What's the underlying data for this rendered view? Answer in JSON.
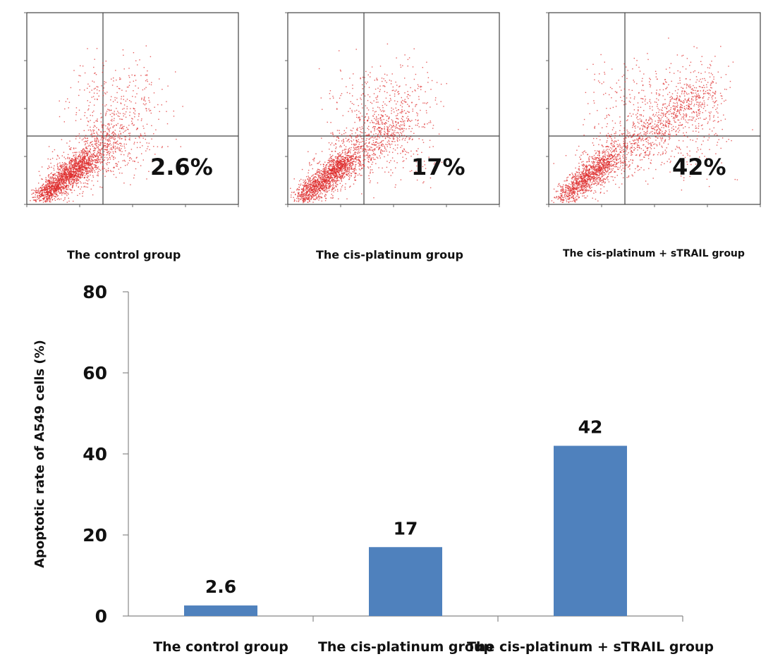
{
  "chart_data": [
    {
      "type": "scatter",
      "panel": "flow cytometry dot plot",
      "label": "The control group",
      "annotation": "2.6%",
      "apoptotic_rate": 2.6,
      "color": "#dd2a2a"
    },
    {
      "type": "scatter",
      "panel": "flow cytometry dot plot",
      "label": "The cis-platinum group",
      "annotation": "17%",
      "apoptotic_rate": 17,
      "color": "#dd2a2a"
    },
    {
      "type": "scatter",
      "panel": "flow cytometry dot plot",
      "label": "The cis-platinum + sTRAIL group",
      "annotation": "42%",
      "apoptotic_rate": 42,
      "color": "#dd2a2a"
    },
    {
      "type": "bar",
      "categories": [
        "The control group",
        "The cis-platinum group",
        "The cis-platinum + sTRAIL group"
      ],
      "values": [
        2.6,
        17,
        42
      ],
      "data_labels": [
        "2.6",
        "17",
        "42"
      ],
      "ylabel": "Apoptotic rate of A549 cells (%)",
      "xlabel": "",
      "ylim": [
        0,
        80
      ],
      "yticks": [
        0,
        20,
        40,
        60,
        80
      ],
      "grid": false,
      "bar_color": "#4f81bd"
    }
  ]
}
